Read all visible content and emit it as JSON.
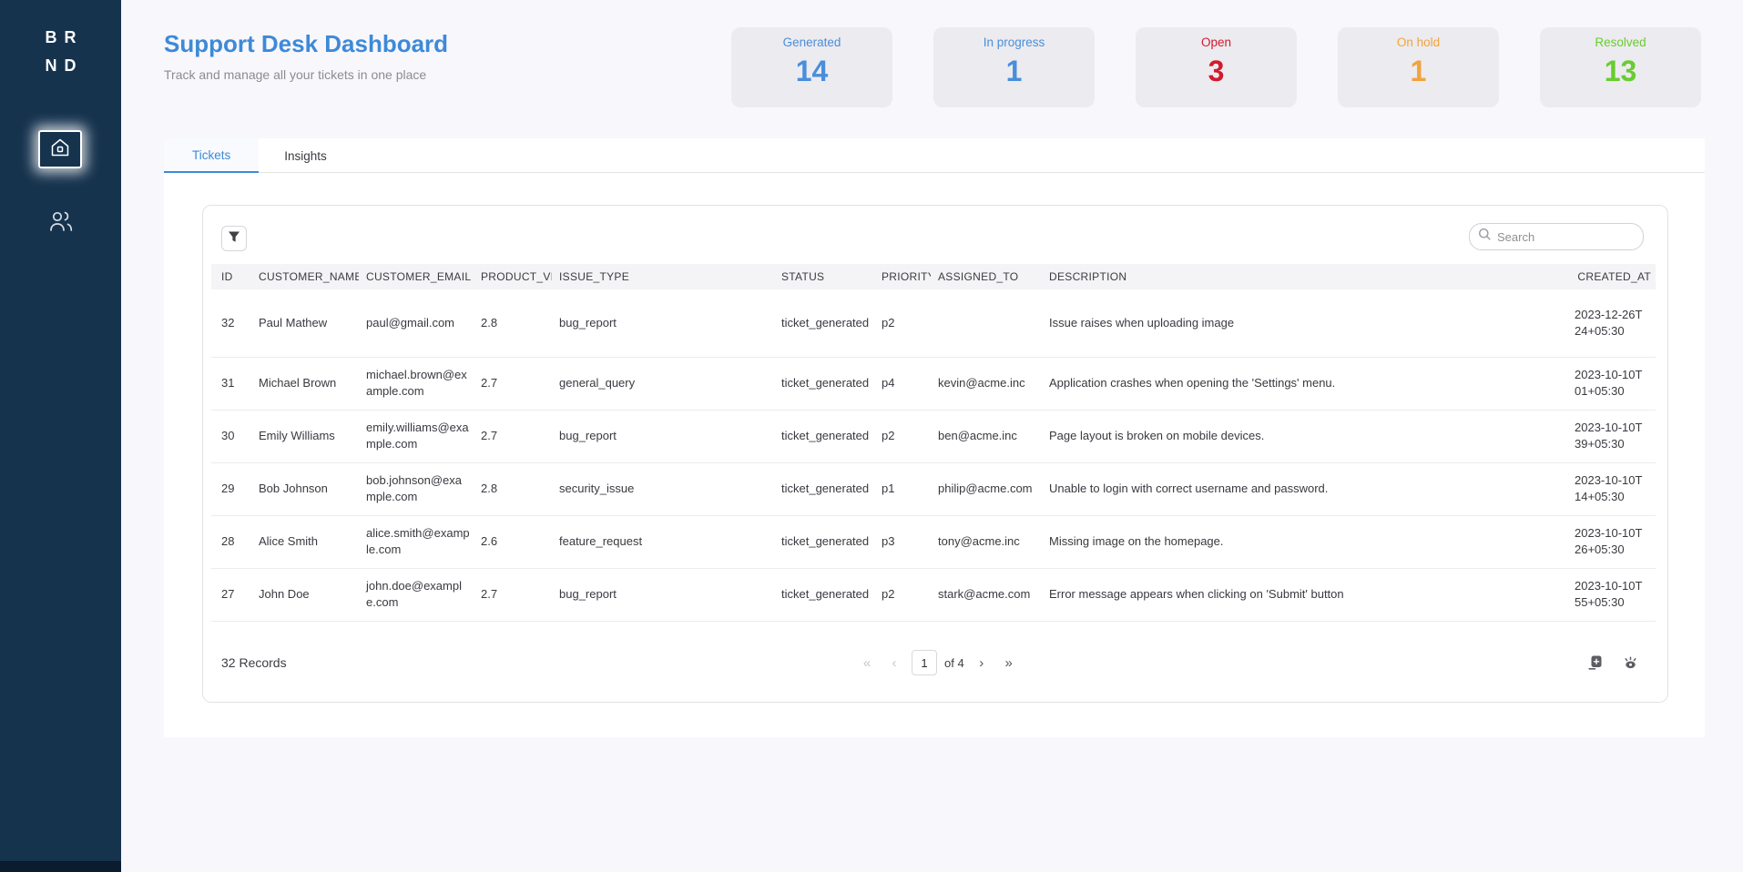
{
  "brand": {
    "line1": "BR",
    "line2": "ND"
  },
  "header": {
    "title": "Support Desk Dashboard",
    "subtitle": "Track and manage all your tickets in one place"
  },
  "stats": [
    {
      "label": "Generated",
      "value": "14",
      "color": "#4a8edb"
    },
    {
      "label": "In progress",
      "value": "1",
      "color": "#4a8edb"
    },
    {
      "label": "Open",
      "value": "3",
      "color": "#d21a2e"
    },
    {
      "label": "On hold",
      "value": "1",
      "color": "#f2a33c"
    },
    {
      "label": "Resolved",
      "value": "13",
      "color": "#68cd2f"
    }
  ],
  "tabs": [
    {
      "label": "Tickets",
      "active": true
    },
    {
      "label": "Insights",
      "active": false
    }
  ],
  "toolbar": {
    "search_placeholder": "Search"
  },
  "table": {
    "columns": [
      "ID",
      "CUSTOMER_NAME",
      "CUSTOMER_EMAIL",
      "PRODUCT_VER...",
      "ISSUE_TYPE",
      "STATUS",
      "PRIORITY",
      "ASSIGNED_TO",
      "DESCRIPTION",
      "CREATED_AT"
    ],
    "rows": [
      {
        "id": "32",
        "name": "Paul Mathew",
        "email": "paul@gmail.com",
        "product": "2.8",
        "issue": "bug_report",
        "status": "ticket_generated",
        "priority": "p2",
        "assigned": "",
        "description": "Issue raises when uploading image",
        "created_line1": "2023-12-26T",
        "created_line2": "24+05:30"
      },
      {
        "id": "31",
        "name": "Michael Brown",
        "email": "michael.brown@example.com",
        "product": "2.7",
        "issue": "general_query",
        "status": "ticket_generated",
        "priority": "p4",
        "assigned": "kevin@acme.inc",
        "description": "Application crashes when opening the 'Settings' menu.",
        "created_line1": "2023-10-10T",
        "created_line2": "01+05:30"
      },
      {
        "id": "30",
        "name": "Emily Williams",
        "email": "emily.williams@example.com",
        "product": "2.7",
        "issue": "bug_report",
        "status": "ticket_generated",
        "priority": "p2",
        "assigned": "ben@acme.inc",
        "description": "Page layout is broken on mobile devices.",
        "created_line1": "2023-10-10T",
        "created_line2": "39+05:30"
      },
      {
        "id": "29",
        "name": "Bob Johnson",
        "email": "bob.johnson@example.com",
        "product": "2.8",
        "issue": "security_issue",
        "status": "ticket_generated",
        "priority": "p1",
        "assigned": "philip@acme.com",
        "description": "Unable to login with correct username and password.",
        "created_line1": "2023-10-10T",
        "created_line2": "14+05:30"
      },
      {
        "id": "28",
        "name": "Alice Smith",
        "email": "alice.smith@example.com",
        "product": "2.6",
        "issue": "feature_request",
        "status": "ticket_generated",
        "priority": "p3",
        "assigned": "tony@acme.inc",
        "description": "Missing image on the homepage.",
        "created_line1": "2023-10-10T",
        "created_line2": "26+05:30"
      },
      {
        "id": "27",
        "name": "John Doe",
        "email": "john.doe@example.com",
        "product": "2.7",
        "issue": "bug_report",
        "status": "ticket_generated",
        "priority": "p2",
        "assigned": "stark@acme.com",
        "description": "Error message appears when clicking on 'Submit' button",
        "created_line1": "2023-10-10T",
        "created_line2": "55+05:30"
      }
    ]
  },
  "footer": {
    "records": "32 Records",
    "page": "1",
    "of": "of 4"
  },
  "pagination": {
    "first": "«",
    "prev": "‹",
    "next": "›",
    "last": "»"
  },
  "colors": {
    "sidebar": "#16334e",
    "title_blue": "#3d8ad8",
    "page_bg": "#f8f7fb",
    "card_bg": "#ecebef",
    "table_header_bg": "#f4f4f6"
  }
}
